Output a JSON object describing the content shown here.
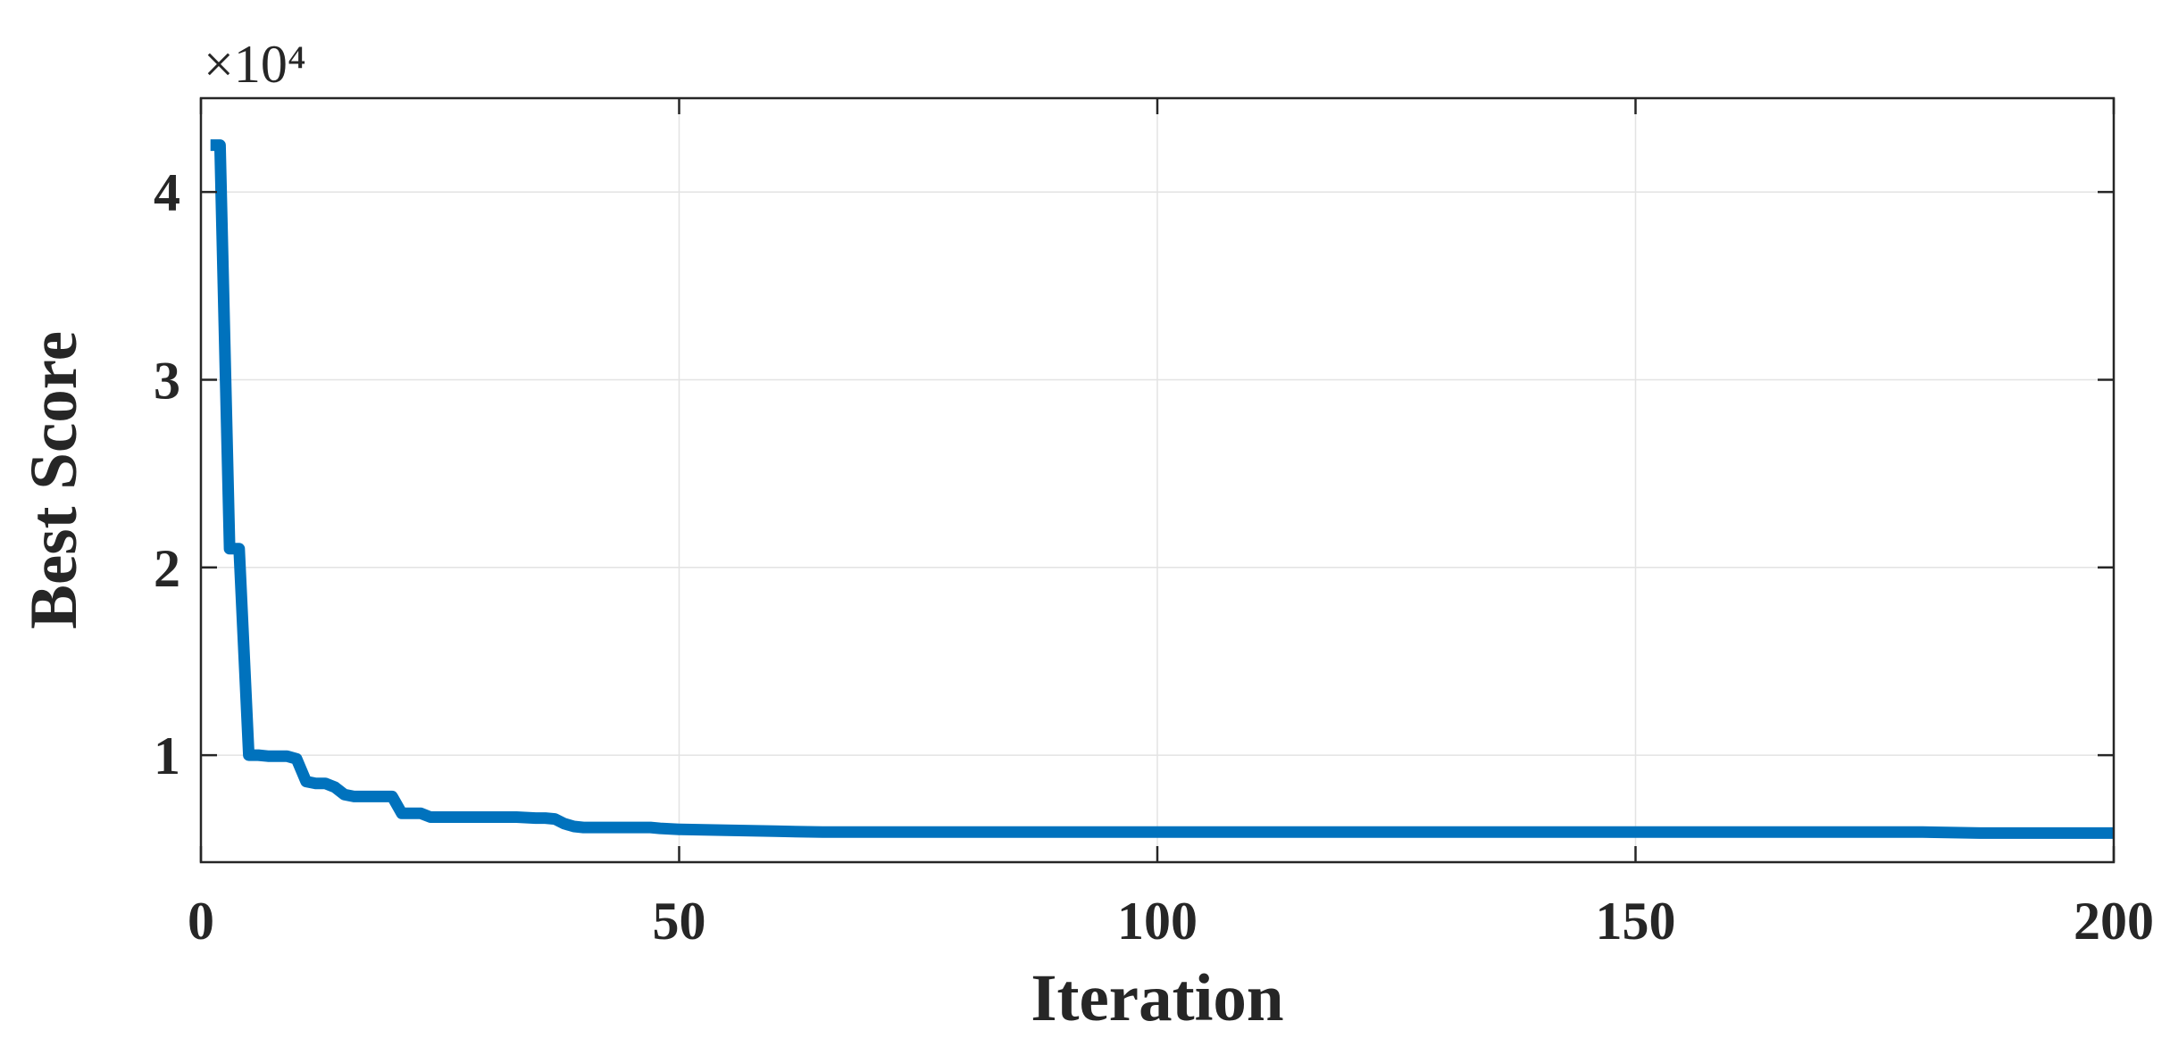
{
  "chart_data": {
    "type": "line",
    "title": "",
    "xlabel": "Iteration",
    "ylabel": "Best Score",
    "y_scale_label": "×10⁴",
    "y_multiplier": 10000,
    "xlim": [
      0,
      200
    ],
    "ylim": [
      4300,
      45000
    ],
    "x_ticks": [
      0,
      50,
      100,
      150,
      200
    ],
    "x_tick_labels": [
      "0",
      "50",
      "100",
      "150",
      "200"
    ],
    "y_ticks": [
      10000,
      20000,
      30000,
      40000
    ],
    "y_tick_labels": [
      "1",
      "2",
      "3",
      "4"
    ],
    "grid": true,
    "legend": "none",
    "series": [
      {
        "color": "#0072BD",
        "x": [
          1,
          2,
          3,
          4,
          5,
          6,
          7,
          8,
          9,
          10,
          11,
          12,
          13,
          14,
          15,
          16,
          17,
          18,
          19,
          20,
          21,
          22,
          23,
          24,
          25,
          30,
          33,
          35,
          36,
          37,
          38,
          39,
          40,
          45,
          47,
          48,
          50,
          55,
          60,
          65,
          70,
          100,
          150,
          180,
          186,
          190,
          200
        ],
        "y": [
          42500,
          42500,
          21000,
          21000,
          10000,
          10000,
          9950,
          9950,
          9950,
          9800,
          8600,
          8500,
          8500,
          8300,
          7900,
          7800,
          7800,
          7800,
          7800,
          7800,
          6900,
          6900,
          6900,
          6700,
          6700,
          6700,
          6700,
          6650,
          6650,
          6600,
          6350,
          6200,
          6150,
          6150,
          6150,
          6100,
          6050,
          6000,
          5950,
          5900,
          5900,
          5900,
          5900,
          5900,
          5850,
          5850,
          5850
        ]
      }
    ]
  }
}
